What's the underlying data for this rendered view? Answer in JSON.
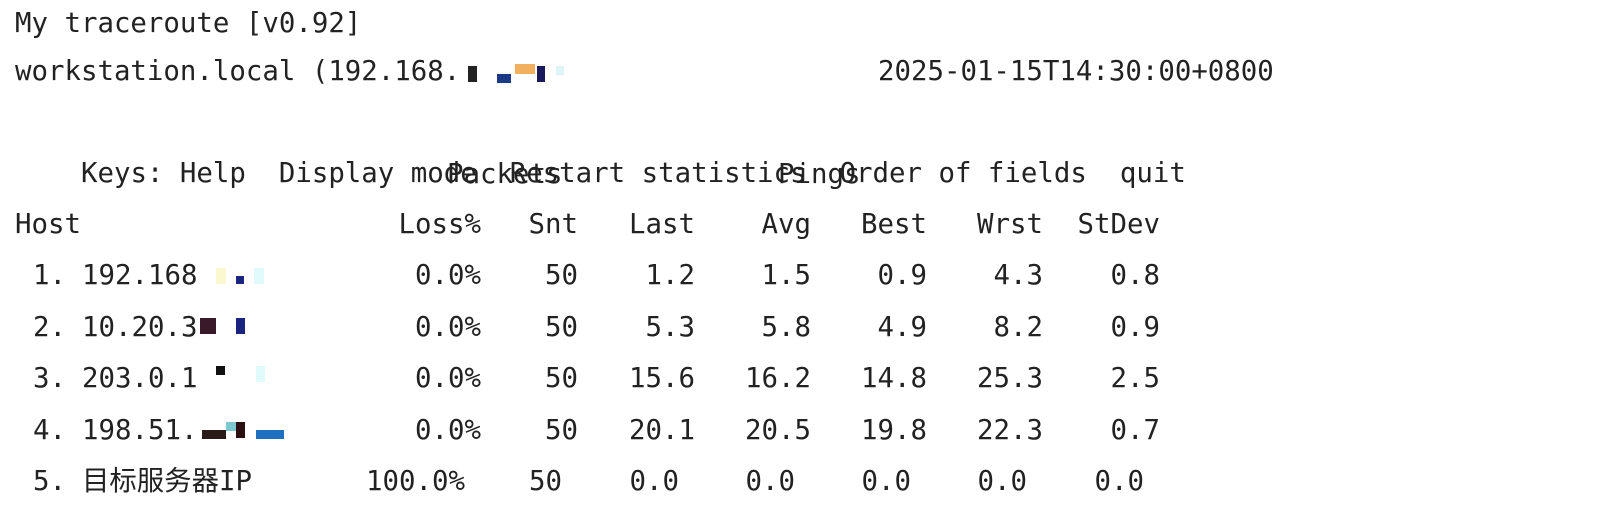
{
  "header": {
    "title": "My traceroute [v0.92]",
    "host": "workstation.local (192.168.",
    "timestamp": "2025-01-15T14:30:00+0800"
  },
  "keys": {
    "label": "Keys:",
    "items": [
      "Help",
      "Display mode",
      "Restart statistics",
      "Order of fields",
      "quit"
    ]
  },
  "table": {
    "groups": [
      "Packets",
      "Pings"
    ],
    "columns": [
      "Host",
      "Loss%",
      "Snt",
      "Last",
      "Avg",
      "Best",
      "Wrst",
      "StDev"
    ],
    "rows": [
      [
        "1.",
        "192.168",
        "0.0%",
        "50",
        "1.2",
        "1.5",
        "0.9",
        "4.3",
        "0.8"
      ],
      [
        "2.",
        "10.20.3",
        "0.0%",
        "50",
        "5.3",
        "5.8",
        "4.9",
        "8.2",
        "0.9"
      ],
      [
        "3.",
        "203.0.1",
        "0.0%",
        "50",
        "15.6",
        "16.2",
        "14.8",
        "25.3",
        "2.5"
      ],
      [
        "4.",
        "198.51.",
        "0.0%",
        "50",
        "20.1",
        "20.5",
        "19.8",
        "22.3",
        "0.7"
      ],
      [
        "5.",
        "目标服务器IP",
        "100.0%",
        "50",
        "0.0",
        "0.0",
        "0.0",
        "0.0",
        "0.0"
      ]
    ]
  }
}
